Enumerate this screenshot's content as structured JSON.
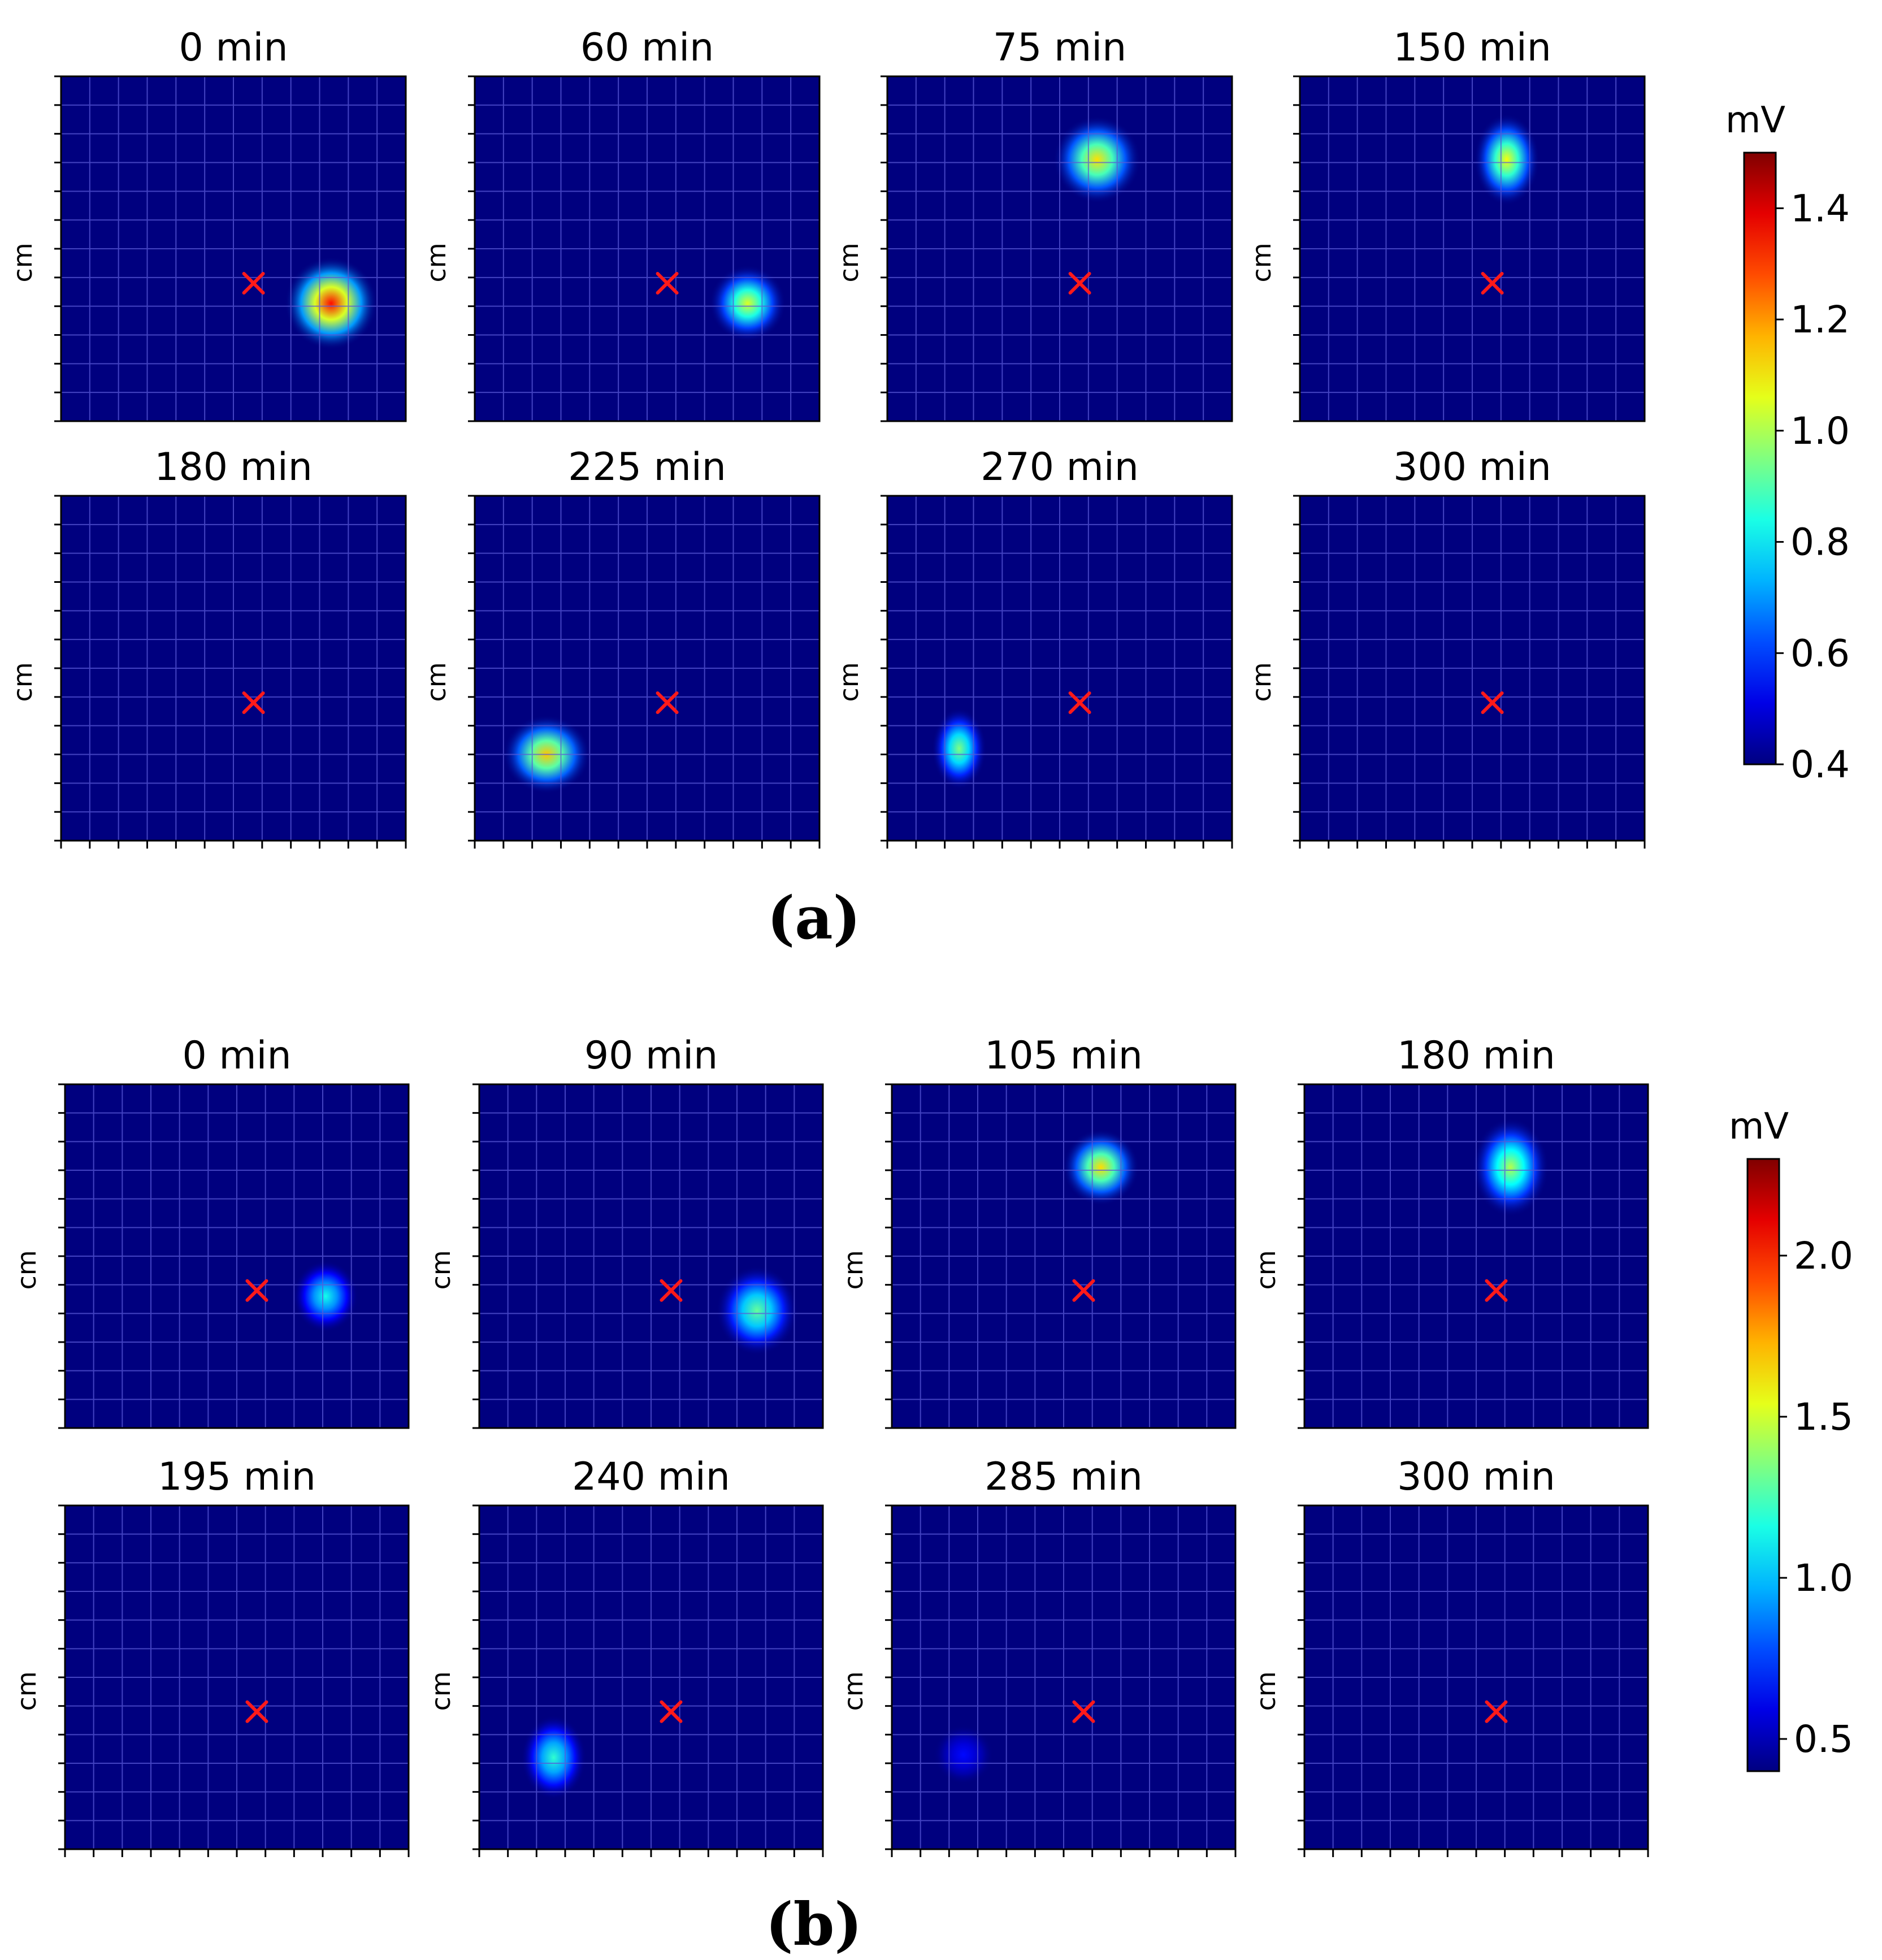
{
  "colors": {
    "background_low": "#00007f",
    "grid": "#5a5ad8",
    "marker": "#ff1a1a"
  },
  "chart_data": [
    {
      "type": "heatmap",
      "subfigure_label": "(a)",
      "colorbar": {
        "unit": "mV",
        "min": 0.4,
        "max": 1.5,
        "ticks": [
          "0.4",
          "0.6",
          "0.8",
          "1.0",
          "1.2",
          "1.4"
        ],
        "colormap": "jet"
      },
      "grid_cells": 12,
      "ylabel": "cm",
      "marker": {
        "symbol": "×",
        "x_cell": 6.7,
        "y_cell": 7.2
      },
      "panels": [
        {
          "title": "0 min",
          "hotspot": {
            "x_cell": 9.4,
            "y_cell": 7.9,
            "peak_mV": 1.35,
            "spread": 0.85,
            "y_stretch": 1.0
          }
        },
        {
          "title": "60 min",
          "hotspot": {
            "x_cell": 9.5,
            "y_cell": 7.9,
            "peak_mV": 1.05,
            "spread": 0.7,
            "y_stretch": 1.0
          }
        },
        {
          "title": "75 min",
          "hotspot": {
            "x_cell": 7.3,
            "y_cell": 2.9,
            "peak_mV": 1.12,
            "spread": 0.8,
            "y_stretch": 1.0
          }
        },
        {
          "title": "150 min",
          "hotspot": {
            "x_cell": 7.2,
            "y_cell": 2.9,
            "peak_mV": 1.08,
            "spread": 0.6,
            "y_stretch": 1.4
          }
        },
        {
          "title": "180 min",
          "hotspot": null
        },
        {
          "title": "225 min",
          "hotspot": {
            "x_cell": 2.5,
            "y_cell": 9.0,
            "peak_mV": 1.15,
            "spread": 0.8,
            "y_stretch": 0.9
          }
        },
        {
          "title": "270 min",
          "hotspot": {
            "x_cell": 2.5,
            "y_cell": 8.8,
            "peak_mV": 0.95,
            "spread": 0.5,
            "y_stretch": 1.5
          }
        },
        {
          "title": "300 min",
          "hotspot": null
        }
      ]
    },
    {
      "type": "heatmap",
      "subfigure_label": "(b)",
      "colorbar": {
        "unit": "mV",
        "min": 0.4,
        "max": 2.3,
        "ticks": [
          "0.5",
          "1.0",
          "1.5",
          "2.0"
        ],
        "colormap": "jet"
      },
      "grid_cells": 12,
      "ylabel": "cm",
      "marker": {
        "symbol": "×",
        "x_cell": 6.7,
        "y_cell": 7.2
      },
      "panels": [
        {
          "title": "0 min",
          "hotspot": {
            "x_cell": 9.1,
            "y_cell": 7.4,
            "peak_mV": 1.15,
            "spread": 0.6,
            "y_stretch": 1.1
          }
        },
        {
          "title": "90 min",
          "hotspot": {
            "x_cell": 9.7,
            "y_cell": 7.9,
            "peak_mV": 1.3,
            "spread": 0.75,
            "y_stretch": 1.1
          }
        },
        {
          "title": "105 min",
          "hotspot": {
            "x_cell": 7.3,
            "y_cell": 2.9,
            "peak_mV": 1.65,
            "spread": 0.7,
            "y_stretch": 1.0
          }
        },
        {
          "title": "180 min",
          "hotspot": {
            "x_cell": 7.2,
            "y_cell": 2.9,
            "peak_mV": 1.45,
            "spread": 0.7,
            "y_stretch": 1.3
          }
        },
        {
          "title": "195 min",
          "hotspot": null
        },
        {
          "title": "240 min",
          "hotspot": {
            "x_cell": 2.6,
            "y_cell": 8.8,
            "peak_mV": 1.2,
            "spread": 0.6,
            "y_stretch": 1.3
          }
        },
        {
          "title": "285 min",
          "hotspot": {
            "x_cell": 2.5,
            "y_cell": 8.7,
            "peak_mV": 0.65,
            "spread": 0.55,
            "y_stretch": 1.0
          }
        },
        {
          "title": "300 min",
          "hotspot": null
        }
      ]
    }
  ]
}
